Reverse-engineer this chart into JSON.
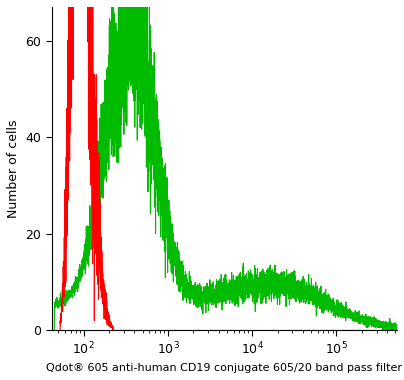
{
  "title": "",
  "xlabel": "Qdot® 605 anti-human CD19 conjugate 605/20 band pass filter",
  "ylabel": "Number of cells",
  "xlim_log": [
    1.62,
    5.72
  ],
  "ylim": [
    0,
    67
  ],
  "yticks": [
    0,
    20,
    40,
    60
  ],
  "xtick_positions": [
    2,
    3,
    4,
    5
  ],
  "xtick_labels": [
    "10$^2$",
    "10$^3$",
    "10$^4$",
    "10$^5$"
  ],
  "red_color": "#ff0000",
  "green_color": "#00bb00",
  "line_width": 0.8,
  "bg_color": "#ffffff",
  "xlabel_fontsize": 8.0,
  "ylabel_fontsize": 9,
  "tick_fontsize": 9
}
